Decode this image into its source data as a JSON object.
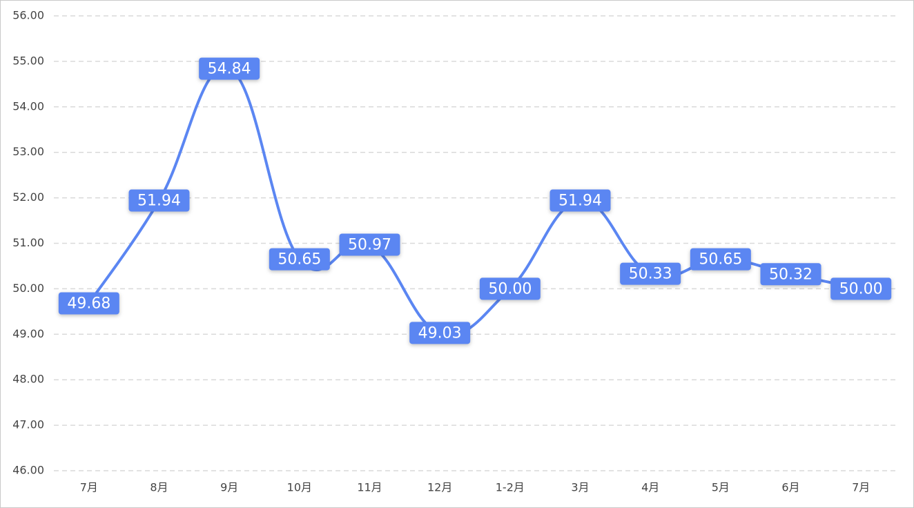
{
  "chart_data": {
    "type": "line",
    "categories": [
      "7月",
      "8月",
      "9月",
      "10月",
      "11月",
      "12月",
      "1-2月",
      "3月",
      "4月",
      "5月",
      "6月",
      "7月"
    ],
    "values": [
      49.68,
      51.94,
      54.84,
      50.65,
      50.97,
      49.03,
      50,
      51.94,
      50.33,
      50.65,
      50.32,
      50
    ],
    "value_labels": [
      "49.68",
      "51.94",
      "54.84",
      "50.65",
      "50.97",
      "49.03",
      "50.00",
      "51.94",
      "50.33",
      "50.65",
      "50.32",
      "50.00"
    ],
    "color": "#5b86f2",
    "ylim": [
      46,
      56
    ],
    "yticks": [
      {
        "value": 46,
        "label": "46.00"
      },
      {
        "value": 47,
        "label": "47.00"
      },
      {
        "value": 48,
        "label": "48.00"
      },
      {
        "value": 49,
        "label": "49.00"
      },
      {
        "value": 50,
        "label": "50.00"
      },
      {
        "value": 51,
        "label": "51.00"
      },
      {
        "value": 52,
        "label": "52.00"
      },
      {
        "value": 53,
        "label": "53.00"
      },
      {
        "value": 54,
        "label": "54.00"
      },
      {
        "value": 55,
        "label": "55.00"
      },
      {
        "value": 56,
        "label": "56.00"
      }
    ],
    "grid": true,
    "smooth": true
  }
}
